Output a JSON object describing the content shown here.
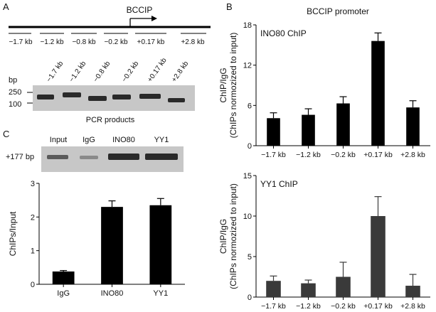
{
  "panel_a": {
    "letter": "A",
    "gene_label": "BCCIP",
    "regions": [
      "−1.7 kb",
      "−1.2 kb",
      "−0.8 kb",
      "−0.2 kb",
      "+0.17 kb",
      "+2.8 kb"
    ],
    "gel": {
      "bp_label": "bp",
      "markers": [
        "250",
        "100"
      ],
      "caption": "PCR products"
    }
  },
  "panel_b": {
    "letter": "B",
    "title": "BCCIP promoter"
  },
  "panel_c": {
    "letter": "C",
    "gel": {
      "lanes": [
        "Input",
        "IgG",
        "INO80",
        "YY1"
      ],
      "row_label": "+177 bp"
    }
  },
  "colors": {
    "bar": "#000000",
    "bar_grey": "#3a3a3a",
    "gel_bg": "#c7c7c7",
    "band": "#2a2a2a"
  },
  "chart_data": [
    {
      "id": "ino80",
      "type": "bar",
      "title": "INO80 ChIP",
      "xlabel": "",
      "ylabel": "ChIP/IgG",
      "ylabel2": "(ChIPs normozized to input)",
      "categories": [
        "−1.7 kb",
        "−1.2 kb",
        "−0.2 kb",
        "+0.17 kb",
        "+2.8 kb"
      ],
      "values": [
        4.1,
        4.6,
        6.3,
        15.6,
        5.7
      ],
      "errors": [
        0.8,
        0.9,
        1.0,
        1.2,
        1.0
      ],
      "ylim": [
        0,
        18
      ],
      "yticks": [
        0,
        6,
        12,
        18
      ]
    },
    {
      "id": "yy1",
      "type": "bar",
      "title": "YY1 ChIP",
      "xlabel": "",
      "ylabel": "ChIP/IgG",
      "ylabel2": "(ChIPs normozized to input)",
      "categories": [
        "−1.7 kb",
        "−1.2 kb",
        "−0.2 kb",
        "+0.17 kb",
        "+2.8 kb"
      ],
      "values": [
        2.0,
        1.7,
        2.5,
        10.0,
        1.4
      ],
      "errors": [
        0.6,
        0.4,
        1.8,
        2.4,
        1.4
      ],
      "ylim": [
        0,
        15
      ],
      "yticks": [
        0,
        5,
        10,
        15
      ]
    },
    {
      "id": "c",
      "type": "bar",
      "title": "",
      "xlabel": "",
      "ylabel": "ChIPs/Input",
      "ylabel2": "",
      "categories": [
        "IgG",
        "INO80",
        "YY1"
      ],
      "values": [
        0.38,
        2.3,
        2.35
      ],
      "errors": [
        0.03,
        0.18,
        0.2
      ],
      "ylim": [
        0,
        3
      ],
      "yticks": [
        0,
        1,
        2,
        3
      ]
    }
  ]
}
